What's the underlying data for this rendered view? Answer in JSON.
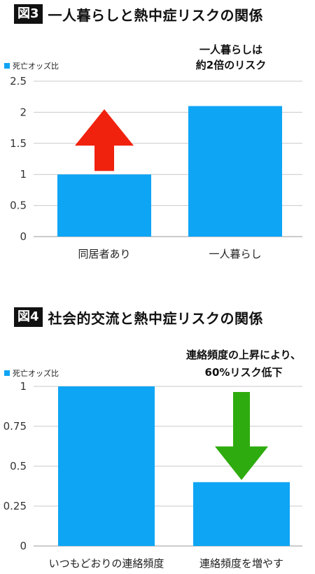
{
  "figures": [
    {
      "badge": "図3",
      "title": "一人暮らしと熱中症リスクの関係",
      "legend": "死亡オッズ比",
      "annotation": [
        "一人暮らしは",
        "約2倍のリスク"
      ],
      "arrow": {
        "direction": "up",
        "color": "#f0220e",
        "over_category": 0
      },
      "colors": {
        "bar": "#0ea5f5",
        "grid": "#c9c9c9"
      }
    },
    {
      "badge": "図4",
      "title": "社会的交流と熱中症リスクの関係",
      "legend": "死亡オッズ比",
      "annotation": [
        "連絡頻度の上昇により、",
        "60%リスク低下"
      ],
      "arrow": {
        "direction": "down",
        "color": "#2eab0e",
        "over_category": 1
      },
      "colors": {
        "bar": "#0ea5f5",
        "grid": "#c9c9c9"
      }
    }
  ],
  "chart_data": [
    {
      "type": "bar",
      "title": "一人暮らしと熱中症リスクの関係",
      "categories": [
        "同居者あり",
        "一人暮らし"
      ],
      "series": [
        {
          "name": "死亡オッズ比",
          "values": [
            1.0,
            2.1
          ]
        }
      ],
      "yticks": [
        "0",
        "0.5",
        "1",
        "1.5",
        "2",
        "2.5"
      ],
      "ylim": [
        0,
        2.5
      ],
      "grid": true,
      "legend": "top-left"
    },
    {
      "type": "bar",
      "title": "社会的交流と熱中症リスクの関係",
      "categories": [
        "いつもどおりの連絡頻度",
        "連絡頻度を増やす"
      ],
      "series": [
        {
          "name": "死亡オッズ比",
          "values": [
            1.0,
            0.4
          ]
        }
      ],
      "yticks": [
        "0",
        "0.25",
        "0.5",
        "0.75",
        "1"
      ],
      "ylim": [
        0,
        1
      ],
      "grid": true,
      "legend": "top-left"
    }
  ]
}
